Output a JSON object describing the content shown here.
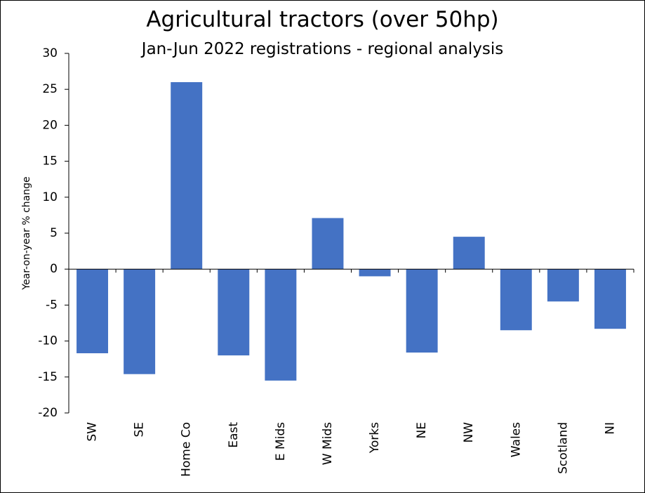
{
  "chart_data": {
    "type": "bar",
    "title": "Agricultural tractors (over 50hp)",
    "subtitle": "Jan-Jun 2022 registrations - regional analysis",
    "xlabel": "",
    "ylabel": "Year-on-year  % change",
    "ylim": [
      -20,
      30
    ],
    "yticks": [
      30,
      25,
      20,
      15,
      10,
      5,
      0,
      -5,
      -10,
      -15,
      -20
    ],
    "categories": [
      "SW",
      "SE",
      "Home Co",
      "East",
      "E Mids",
      "W Mids",
      "Yorks",
      "NE",
      "NW",
      "Wales",
      "Scotland",
      "NI"
    ],
    "values": [
      -11.7,
      -14.6,
      26.0,
      -12.0,
      -15.5,
      7.1,
      -1.0,
      -11.6,
      4.5,
      -8.5,
      -4.5,
      -8.3
    ],
    "bar_color": "#4472C4",
    "grid": false,
    "legend": "none"
  }
}
